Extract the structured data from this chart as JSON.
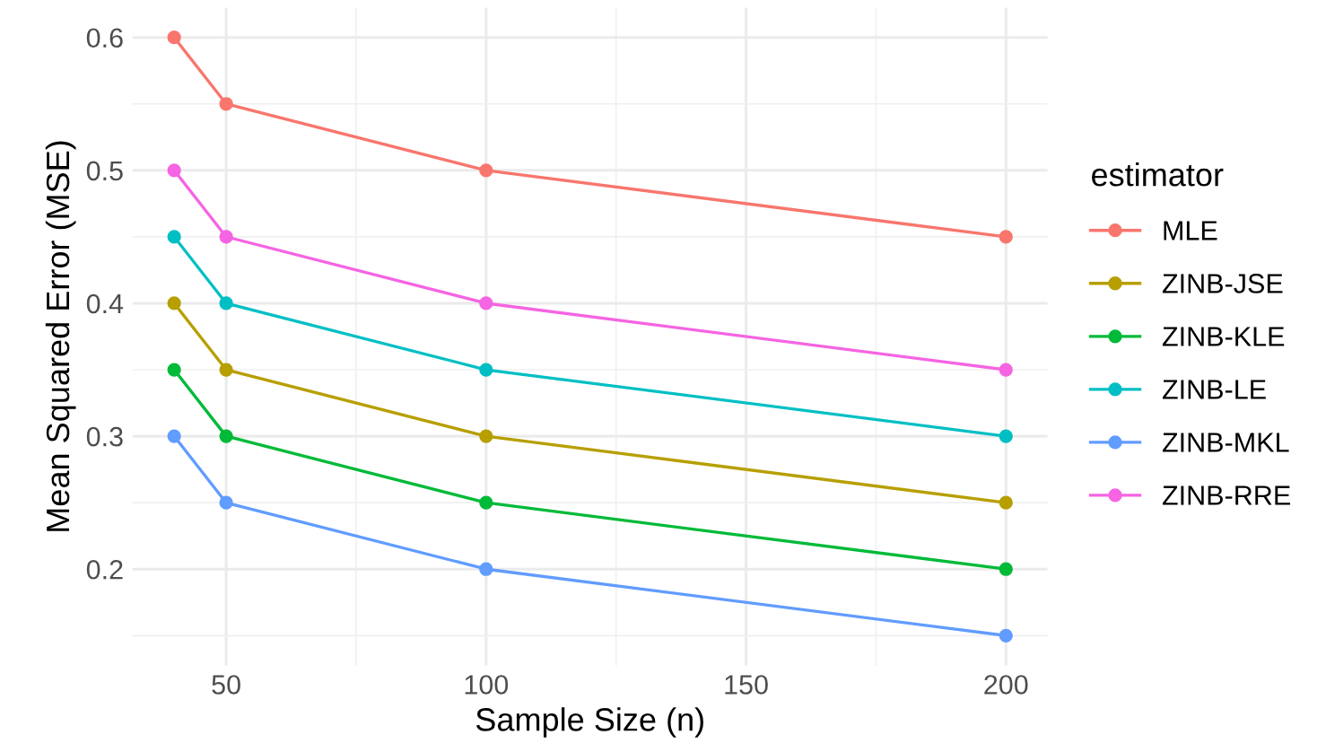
{
  "chart_data": {
    "type": "line",
    "xlabel": "Sample Size (n)",
    "ylabel": "Mean Squared Error (MSE)",
    "legend_title": "estimator",
    "legend": "right",
    "grid": true,
    "marker": "circle",
    "line_style": "solid",
    "x": [
      40,
      50,
      100,
      200
    ],
    "xlim": [
      32,
      208
    ],
    "xticks": [
      50,
      100,
      150,
      200
    ],
    "ylim": [
      0.1275,
      0.6225
    ],
    "yticks": [
      0.2,
      0.3,
      0.4,
      0.5,
      0.6
    ],
    "series": [
      {
        "name": "MLE",
        "color": "#f8766d",
        "values": [
          0.6,
          0.55,
          0.5,
          0.45
        ]
      },
      {
        "name": "ZINB-JSE",
        "color": "#b79f00",
        "values": [
          0.4,
          0.35,
          0.3,
          0.25
        ]
      },
      {
        "name": "ZINB-KLE",
        "color": "#00ba38",
        "values": [
          0.35,
          0.3,
          0.25,
          0.2
        ]
      },
      {
        "name": "ZINB-LE",
        "color": "#00bfc4",
        "values": [
          0.45,
          0.4,
          0.35,
          0.3
        ]
      },
      {
        "name": "ZINB-MKL",
        "color": "#619cff",
        "values": [
          0.3,
          0.25,
          0.2,
          0.15
        ]
      },
      {
        "name": "ZINB-RRE",
        "color": "#f564e3",
        "values": [
          0.5,
          0.45,
          0.4,
          0.35
        ]
      }
    ]
  }
}
